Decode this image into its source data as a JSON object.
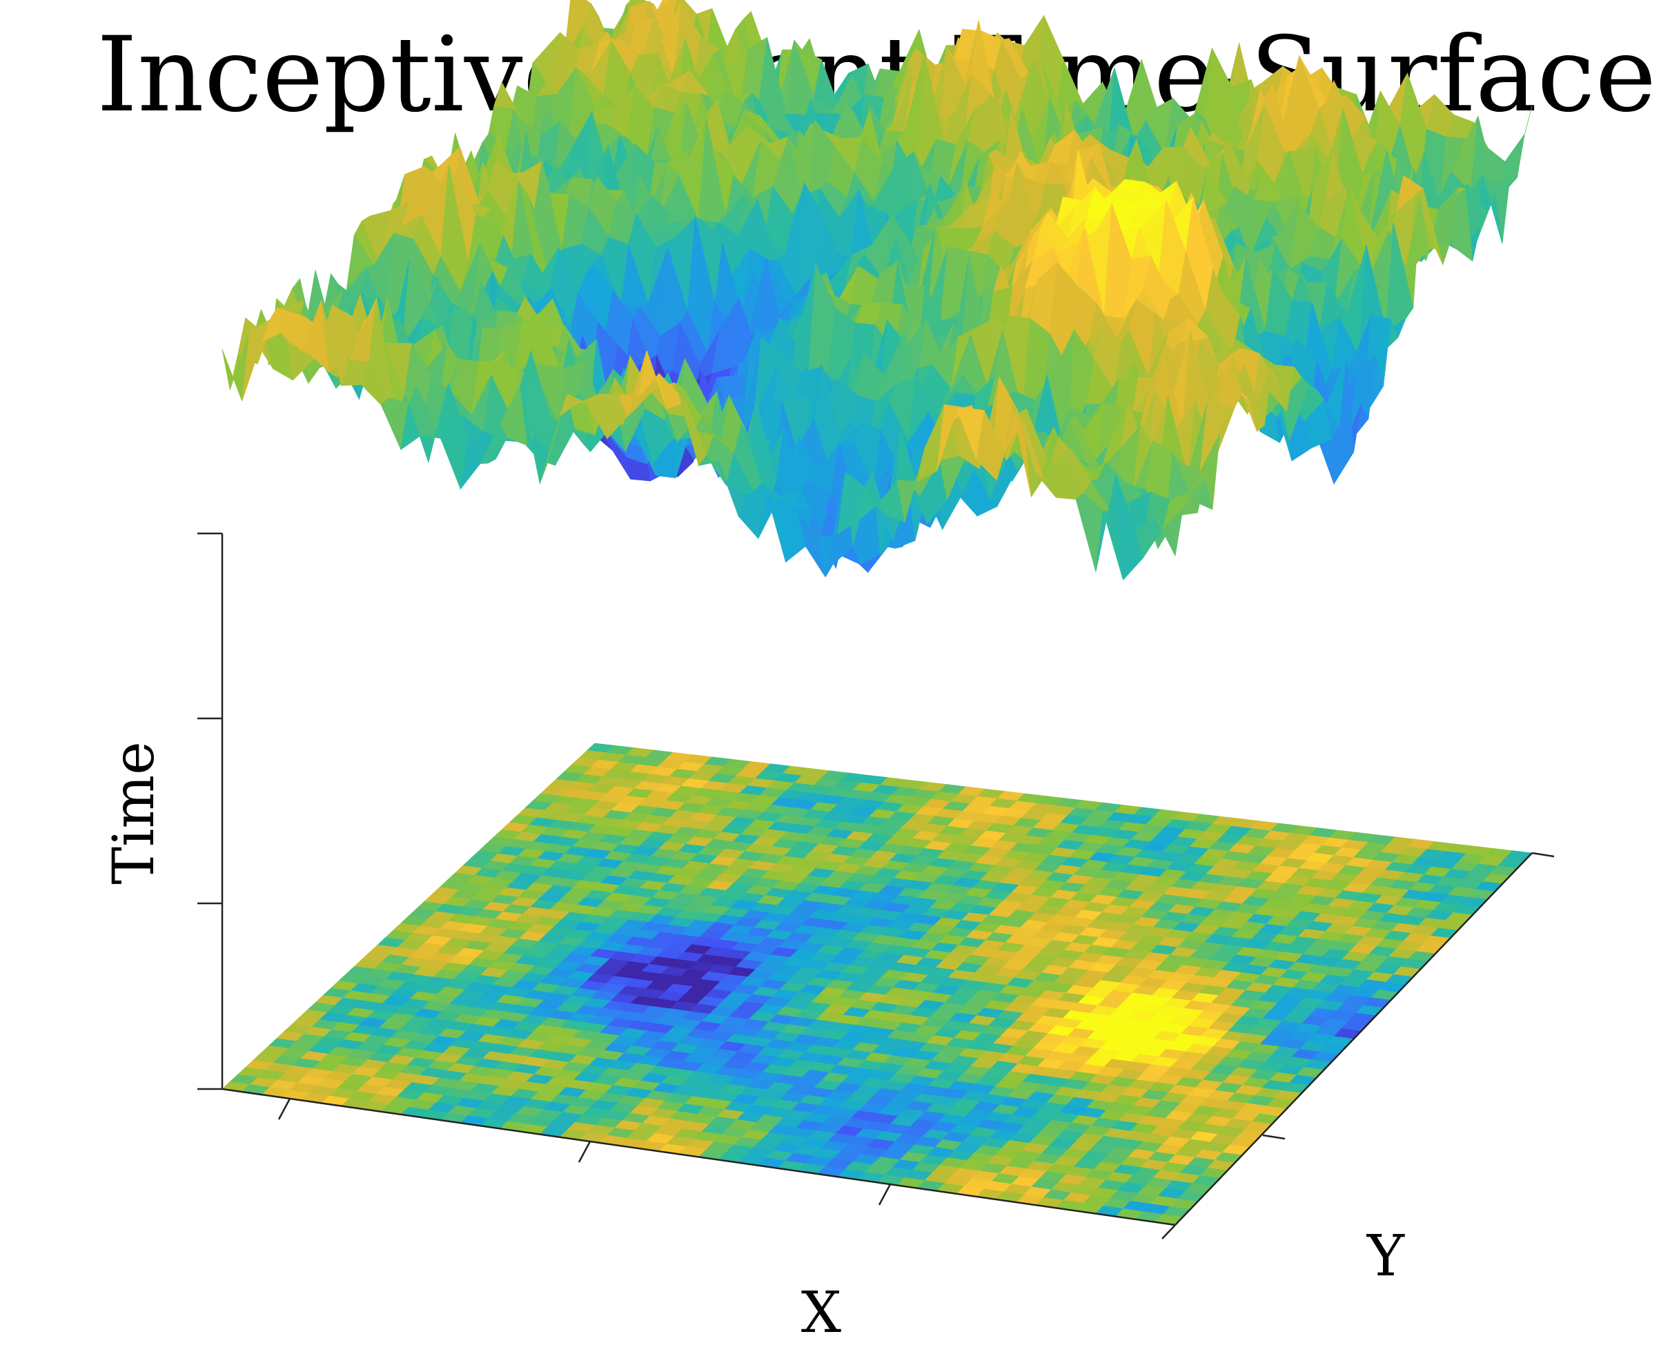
{
  "chart_data": {
    "type": "surface3d",
    "title": "Inceptive Event Time-Surface",
    "xlabel": "X",
    "ylabel": "Y",
    "zlabel": "Time",
    "colormap": "parula",
    "colormap_stops": [
      "#3e26a8",
      "#4353f5",
      "#2c87f1",
      "#17a9d7",
      "#2ebc9b",
      "#8dc43a",
      "#dbb932",
      "#fcc933",
      "#f9fb15"
    ],
    "grid": true,
    "projection": "xy-plane colour map below raised time surface",
    "x_ticks": 3,
    "y_ticks": 2,
    "z_ticks": 3,
    "tick_labels_visible": false
  }
}
